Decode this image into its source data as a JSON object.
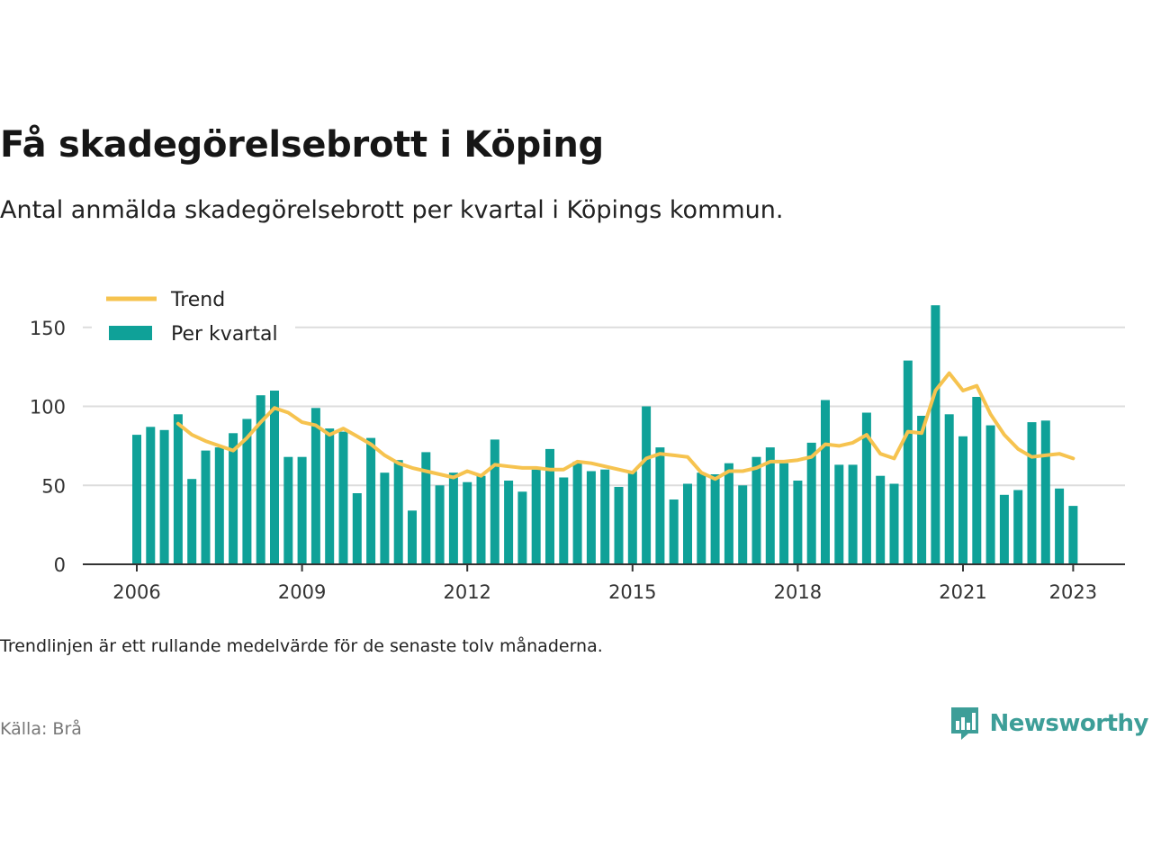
{
  "title": "Få skadegörelsebrott i Köping",
  "subtitle": "Antal anmälda skadegörelsebrott per kvartal i Köpings kommun.",
  "note": "Trendlinjen är ett rullande medelvärde för de senaste tolv månaderna.",
  "source": "Källa: Brå",
  "brand": {
    "name": "Newsworthy",
    "icon": "newsworthy-logo-icon",
    "color": "#3d9e98"
  },
  "colors": {
    "bar": "#0fa198",
    "trend": "#f6c34f",
    "grid": "#dddddd",
    "axis": "#333333"
  },
  "chart_data": {
    "type": "bar",
    "x_ticks": [
      2006,
      2009,
      2012,
      2015,
      2018,
      2021,
      2023
    ],
    "y_ticks": [
      0,
      50,
      100,
      150
    ],
    "ylim": [
      0,
      165
    ],
    "grid": true,
    "legend_position": "top-left",
    "legend": [
      {
        "label": "Trend",
        "kind": "line"
      },
      {
        "label": "Per kvartal",
        "kind": "bar"
      }
    ],
    "series": [
      {
        "name": "Per kvartal",
        "type": "bar",
        "x": [
          "2006-Q1",
          "2006-Q2",
          "2006-Q3",
          "2006-Q4",
          "2007-Q1",
          "2007-Q2",
          "2007-Q3",
          "2007-Q4",
          "2008-Q1",
          "2008-Q2",
          "2008-Q3",
          "2008-Q4",
          "2009-Q1",
          "2009-Q2",
          "2009-Q3",
          "2009-Q4",
          "2010-Q1",
          "2010-Q2",
          "2010-Q3",
          "2010-Q4",
          "2011-Q1",
          "2011-Q2",
          "2011-Q3",
          "2011-Q4",
          "2012-Q1",
          "2012-Q2",
          "2012-Q3",
          "2012-Q4",
          "2013-Q1",
          "2013-Q2",
          "2013-Q3",
          "2013-Q4",
          "2014-Q1",
          "2014-Q2",
          "2014-Q3",
          "2014-Q4",
          "2015-Q1",
          "2015-Q2",
          "2015-Q3",
          "2015-Q4",
          "2016-Q1",
          "2016-Q2",
          "2016-Q3",
          "2016-Q4",
          "2017-Q1",
          "2017-Q2",
          "2017-Q3",
          "2017-Q4",
          "2018-Q1",
          "2018-Q2",
          "2018-Q3",
          "2018-Q4",
          "2019-Q1",
          "2019-Q2",
          "2019-Q3",
          "2019-Q4",
          "2020-Q1",
          "2020-Q2",
          "2020-Q3",
          "2020-Q4",
          "2021-Q1",
          "2021-Q2",
          "2021-Q3",
          "2021-Q4",
          "2022-Q1",
          "2022-Q2",
          "2022-Q3",
          "2022-Q4",
          "2023-Q1"
        ],
        "values": [
          82,
          87,
          85,
          95,
          54,
          72,
          74,
          83,
          92,
          107,
          110,
          68,
          68,
          99,
          86,
          84,
          45,
          80,
          58,
          66,
          34,
          71,
          50,
          58,
          52,
          56,
          79,
          53,
          46,
          60,
          73,
          55,
          65,
          59,
          60,
          49,
          59,
          100,
          74,
          41,
          51,
          58,
          57,
          64,
          50,
          68,
          74,
          64,
          53,
          77,
          104,
          63,
          63,
          96,
          56,
          51,
          129,
          94,
          164,
          95,
          81,
          106,
          88,
          44,
          47,
          90,
          91,
          48,
          37
        ]
      },
      {
        "name": "Trend",
        "type": "line",
        "x": [
          "2006-Q4",
          "2007-Q1",
          "2007-Q2",
          "2007-Q3",
          "2007-Q4",
          "2008-Q1",
          "2008-Q2",
          "2008-Q3",
          "2008-Q4",
          "2009-Q1",
          "2009-Q2",
          "2009-Q3",
          "2009-Q4",
          "2010-Q1",
          "2010-Q2",
          "2010-Q3",
          "2010-Q4",
          "2011-Q1",
          "2011-Q2",
          "2011-Q3",
          "2011-Q4",
          "2012-Q1",
          "2012-Q2",
          "2012-Q3",
          "2012-Q4",
          "2013-Q1",
          "2013-Q2",
          "2013-Q3",
          "2013-Q4",
          "2014-Q1",
          "2014-Q2",
          "2014-Q3",
          "2014-Q4",
          "2015-Q1",
          "2015-Q2",
          "2015-Q3",
          "2015-Q4",
          "2016-Q1",
          "2016-Q2",
          "2016-Q3",
          "2016-Q4",
          "2017-Q1",
          "2017-Q2",
          "2017-Q3",
          "2017-Q4",
          "2018-Q1",
          "2018-Q2",
          "2018-Q3",
          "2018-Q4",
          "2019-Q1",
          "2019-Q2",
          "2019-Q3",
          "2019-Q4",
          "2020-Q1",
          "2020-Q2",
          "2020-Q3",
          "2020-Q4",
          "2021-Q1",
          "2021-Q2",
          "2021-Q3",
          "2021-Q4",
          "2022-Q1",
          "2022-Q2",
          "2022-Q3",
          "2022-Q4",
          "2023-Q1"
        ],
        "values": [
          89,
          82,
          78,
          75,
          72,
          80,
          90,
          99,
          96,
          90,
          88,
          82,
          86,
          81,
          76,
          69,
          64,
          61,
          59,
          57,
          55,
          59,
          56,
          63,
          62,
          61,
          61,
          60,
          60,
          65,
          64,
          62,
          60,
          58,
          67,
          70,
          69,
          68,
          58,
          54,
          59,
          59,
          61,
          65,
          65,
          66,
          68,
          76,
          75,
          77,
          82,
          70,
          67,
          84,
          83,
          110,
          121,
          110,
          113,
          95,
          82,
          73,
          68,
          69,
          70,
          67
        ]
      }
    ]
  }
}
